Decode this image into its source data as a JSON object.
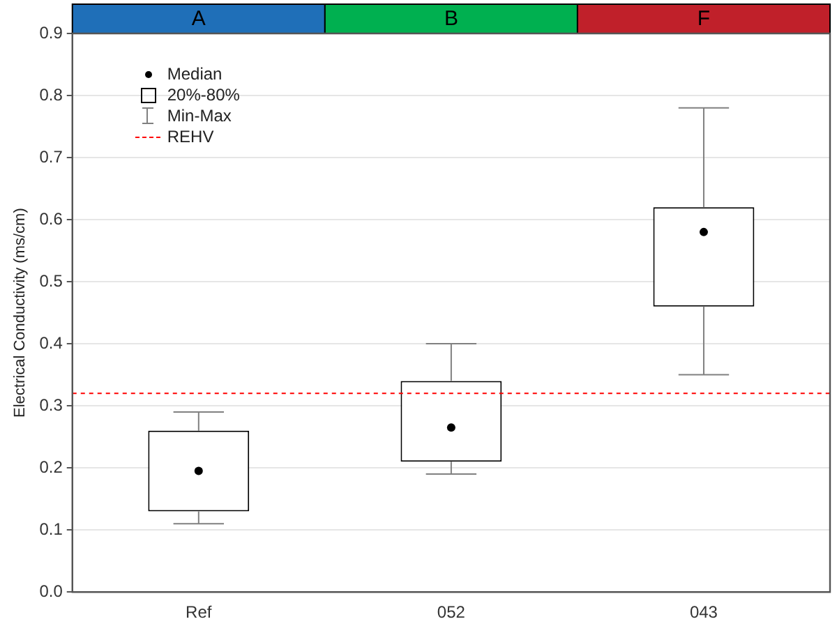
{
  "chart_data": {
    "type": "box",
    "ylabel": "Electrical Conductivity (ms/cm)",
    "categories": [
      "Ref",
      "052",
      "043"
    ],
    "boxes": [
      {
        "low": 0.11,
        "q1": 0.13,
        "median": 0.195,
        "q3": 0.26,
        "high": 0.29
      },
      {
        "low": 0.19,
        "q1": 0.21,
        "median": 0.265,
        "q3": 0.34,
        "high": 0.4
      },
      {
        "low": 0.35,
        "q1": 0.46,
        "median": 0.58,
        "q3": 0.62,
        "high": 0.78
      }
    ],
    "ylim": [
      0,
      0.9
    ],
    "yticks": [
      {
        "value": 0,
        "label": "0.0"
      },
      0.1,
      0.2,
      0.3,
      0.4,
      0.5,
      0.6,
      0.7,
      0.8,
      0.9
    ],
    "ref_lines": [
      {
        "axis": "y",
        "value": 0.32,
        "label": "REHV",
        "color": "#ff0000",
        "line_style": "dashed"
      }
    ],
    "annotations": [
      "Median",
      "20%-80%",
      "Min-Max",
      "A",
      "B",
      "F"
    ],
    "grid": "y",
    "legend": "top left"
  }
}
